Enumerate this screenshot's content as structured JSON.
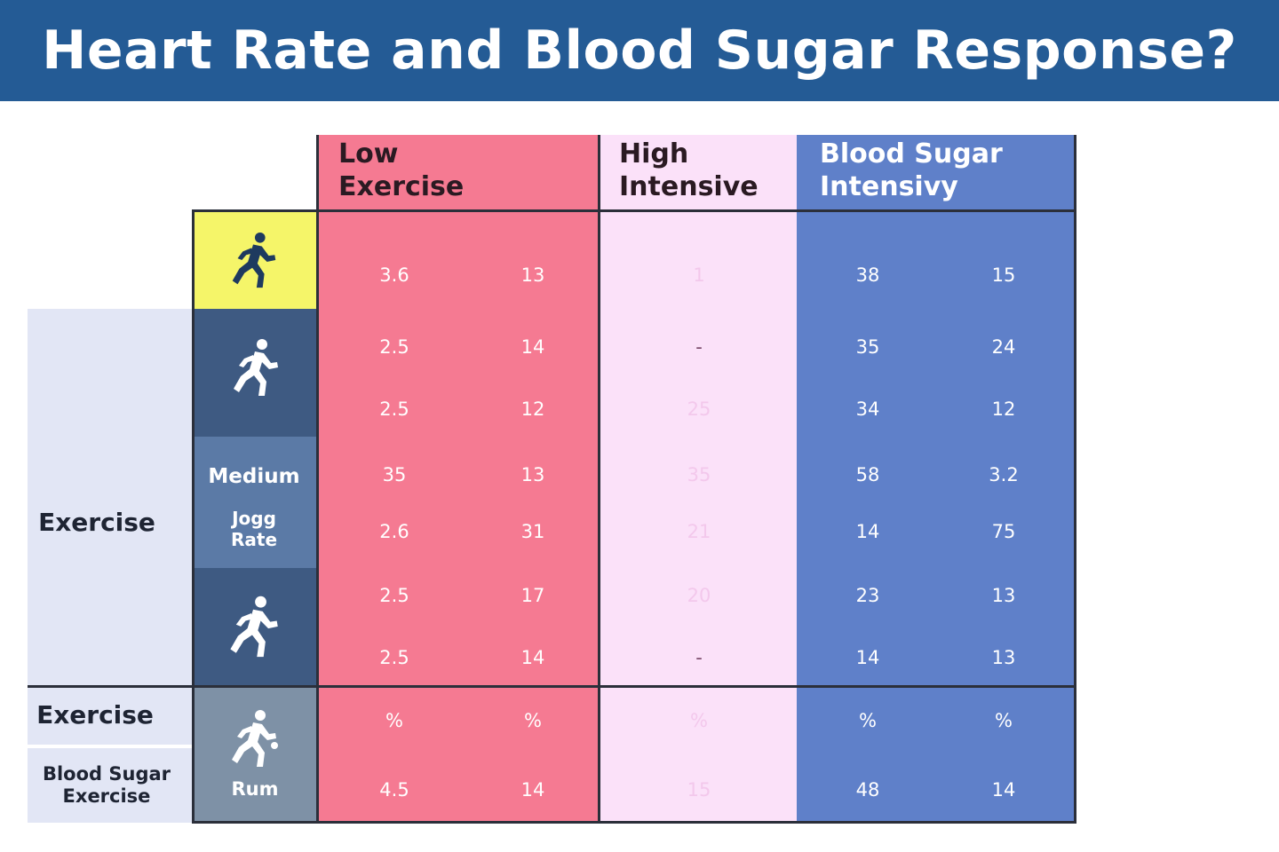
{
  "title": "Heart Rate and Blood Sugar Response?",
  "chart_data": {
    "type": "table",
    "title": "Heart Rate and Blood Sugar Response?",
    "columns": [
      {
        "name": "Low\nExercise",
        "color": "#f57a92"
      },
      {
        "name": "High\nIntensive",
        "color": "#fbe1f9"
      },
      {
        "name": "Blood Sugar\nIntensivy",
        "color": "#5f80c9"
      }
    ],
    "row_groups": [
      {
        "label": "",
        "icon": "runner-icon",
        "color": "#f5f569"
      },
      {
        "label": "",
        "icon": "runner-icon",
        "color": "#3e5a82"
      },
      {
        "label": "Medium",
        "sublabel": "Jogg\nRate",
        "color": "#5b7aa6"
      },
      {
        "label": "",
        "icon": "runner-icon",
        "color": "#3e5a82"
      },
      {
        "label": "Rum",
        "icon": "runner-icon",
        "color": "#7e91a6"
      }
    ],
    "left_labels": [
      "Exercise",
      "Exercise",
      "Blood Sugar\nExercise"
    ],
    "rows": [
      [
        "3.6",
        "13",
        "1",
        "38",
        "15"
      ],
      [
        "2.5",
        "14",
        "-",
        "35",
        "24"
      ],
      [
        "2.5",
        "12",
        "25",
        "34",
        "12"
      ],
      [
        "35",
        "13",
        "35",
        "58",
        "3.2"
      ],
      [
        "2.6",
        "31",
        "21",
        "14",
        "75"
      ],
      [
        "2.5",
        "17",
        "20",
        "23",
        "13"
      ],
      [
        "2.5",
        "14",
        "-",
        "14",
        "13"
      ],
      [
        "%",
        "%",
        "%",
        "%",
        "%"
      ],
      [
        "4.5",
        "14",
        "15",
        "48",
        "14"
      ]
    ]
  }
}
